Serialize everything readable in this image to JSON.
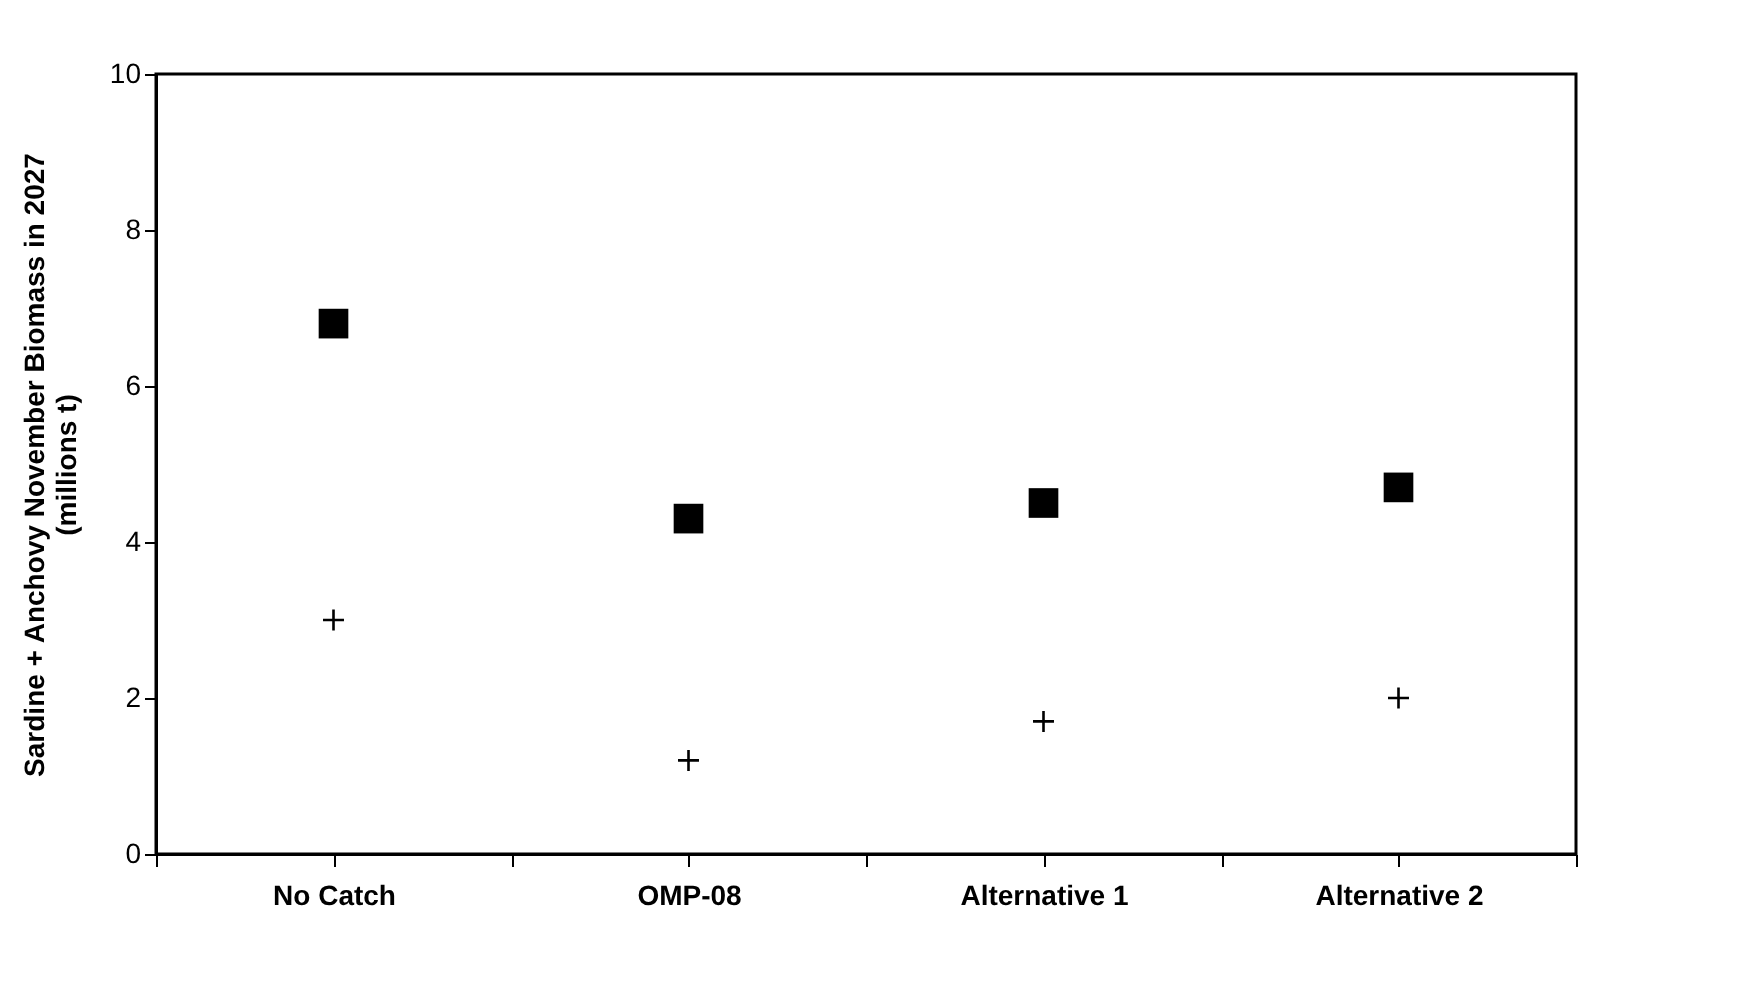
{
  "chart_data": {
    "type": "scatter",
    "ylabel": "Sardine + Anchovy November Biomass in 2027\n(millions t)",
    "categories": [
      "No Catch",
      "OMP-08",
      "Alternative 1",
      "Alternative 2"
    ],
    "ylim": [
      0,
      10
    ],
    "yticks": [
      0,
      2,
      4,
      6,
      8,
      10
    ],
    "grid": false,
    "series": [
      {
        "color": "#000000",
        "marker": "square",
        "values": [
          6.8,
          4.3,
          4.5,
          4.7
        ]
      },
      {
        "color": "#000000",
        "marker": "cross",
        "values": [
          3.0,
          1.2,
          1.7,
          2.0
        ]
      }
    ]
  }
}
